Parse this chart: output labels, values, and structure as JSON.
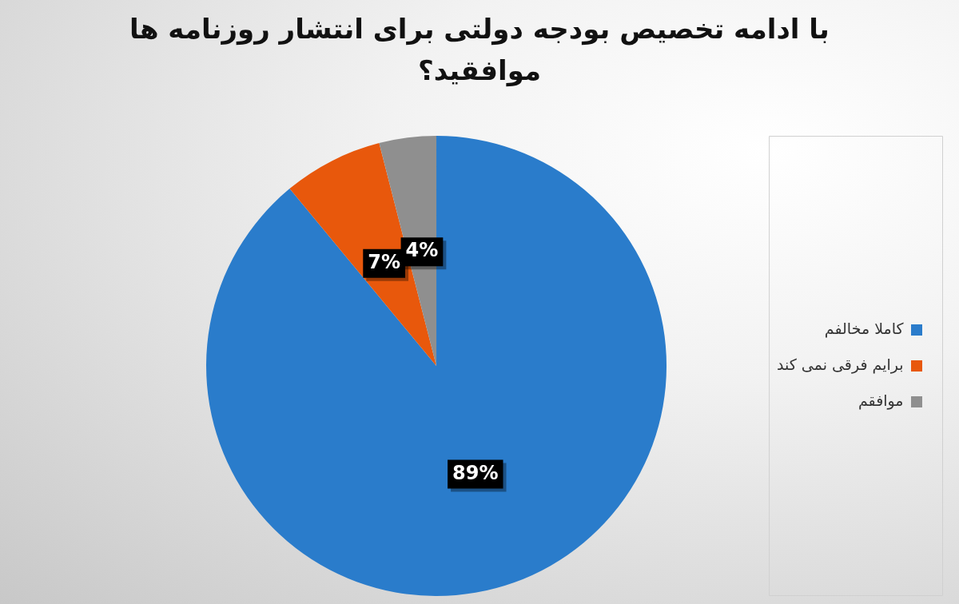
{
  "chart_data": {
    "type": "pie",
    "title": "با ادامه تخصیص بودجه دولتی برای انتشار روزنامه ها موافقید؟",
    "categories": [
      "کاملا مخالفم",
      "برایم فرقی نمی کند",
      "موافقم"
    ],
    "values": [
      89,
      7,
      4
    ],
    "colors": [
      "#2a7ccb",
      "#e8580c",
      "#8f8f8f"
    ],
    "value_labels": [
      "89%",
      "7%",
      "4%"
    ],
    "legend": "right"
  }
}
